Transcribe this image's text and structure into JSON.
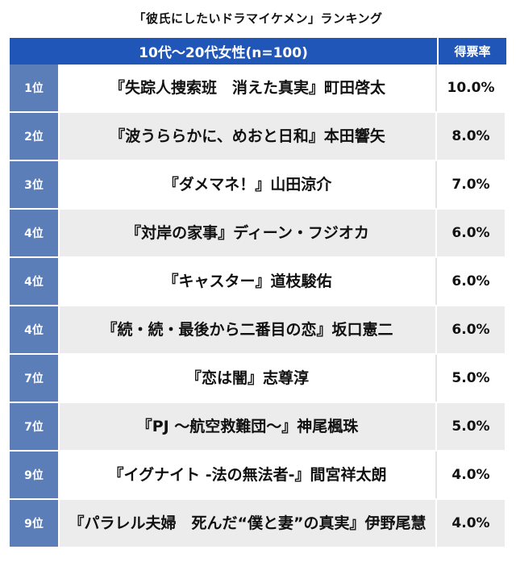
{
  "title": "「彼氏にしたいドラマイケメン」ランキング",
  "table": {
    "header": {
      "group": "10代〜20代女性(n=100)",
      "rate": "得票率"
    },
    "rows": [
      {
        "rank": "1位",
        "name": "『失踪人捜索班　消えた真実』町田啓太",
        "rate": "10.0%"
      },
      {
        "rank": "2位",
        "name": "『波うららかに、めおと日和』本田響矢",
        "rate": "8.0%"
      },
      {
        "rank": "3位",
        "name": "『ダメマネ！』山田涼介",
        "rate": "7.0%"
      },
      {
        "rank": "4位",
        "name": "『対岸の家事』ディーン・フジオカ",
        "rate": "6.0%"
      },
      {
        "rank": "4位",
        "name": "『キャスター』道枝駿佑",
        "rate": "6.0%"
      },
      {
        "rank": "4位",
        "name": "『続・続・最後から二番目の恋』坂口憲二",
        "rate": "6.0%"
      },
      {
        "rank": "7位",
        "name": "『恋は闇』志尊淳",
        "rate": "5.0%"
      },
      {
        "rank": "7位",
        "name": "『PJ 〜航空救難団〜』神尾楓珠",
        "rate": "5.0%"
      },
      {
        "rank": "9位",
        "name": "『イグナイト -法の無法者-』間宮祥太朗",
        "rate": "4.0%"
      },
      {
        "rank": "9位",
        "name": "『パラレル夫婦　死んだ“僕と妻”の真実』伊野尾慧",
        "rate": "4.0%"
      }
    ]
  },
  "colors": {
    "header_bg": "#1f56b8",
    "rank_bg": "#5b7eb9",
    "row_alt_bg": "#ececec"
  }
}
